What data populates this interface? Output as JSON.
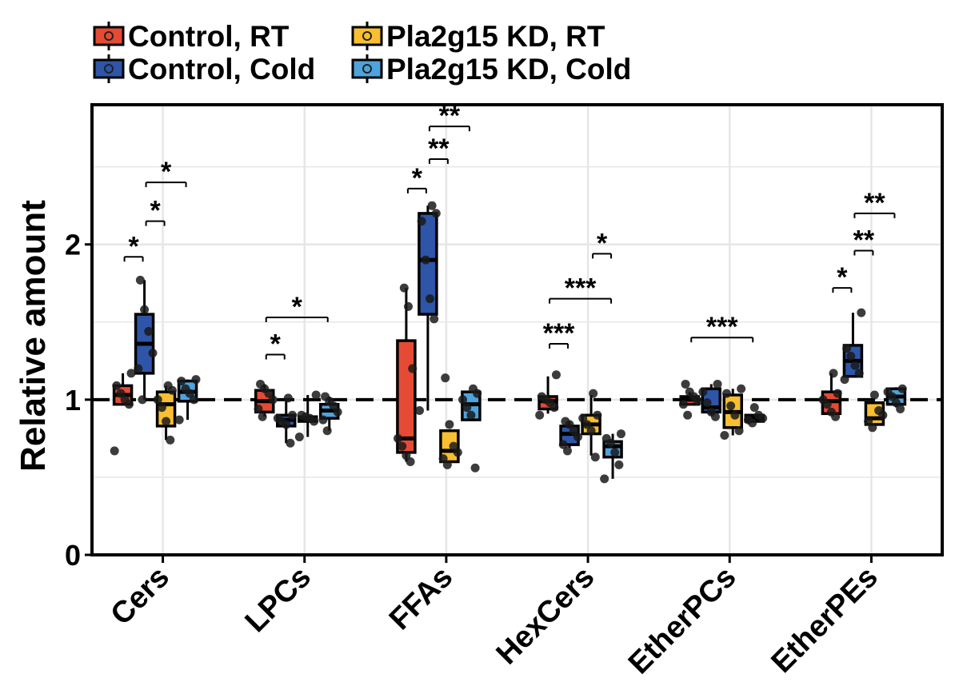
{
  "chart_data": {
    "type": "box",
    "ylabel": "Relative amount",
    "xlabel": "",
    "ylim": [
      0,
      2.9
    ],
    "yticks": [
      0,
      1,
      2
    ],
    "reference_line": 1,
    "categories": [
      "Cers",
      "LPCs",
      "FFAs",
      "HexCers",
      "EtherPCs",
      "EtherPEs"
    ],
    "series": [
      {
        "name": "Control, RT",
        "color": "#e64a35"
      },
      {
        "name": "Control, Cold",
        "color": "#2e55a8"
      },
      {
        "name": "Pla2g15 KD, RT",
        "color": "#f7bf31"
      },
      {
        "name": "Pla2g15 KD, Cold",
        "color": "#4fa3dc"
      }
    ],
    "legend": {
      "position": "top-left",
      "columns": 2
    },
    "boxes": [
      {
        "category": "Cers",
        "series": "Control, RT",
        "whisker_low": 0.97,
        "q1": 0.97,
        "median": 1.03,
        "q3": 1.09,
        "whisker_high": 1.17,
        "points": [
          0.67,
          0.97,
          1.0,
          1.04,
          1.09,
          1.17
        ]
      },
      {
        "category": "Cers",
        "series": "Control, Cold",
        "whisker_low": 1.0,
        "q1": 1.17,
        "median": 1.36,
        "q3": 1.55,
        "whisker_high": 1.77,
        "points": [
          1.0,
          1.2,
          1.3,
          1.44,
          1.58,
          1.77
        ]
      },
      {
        "category": "Cers",
        "series": "Pla2g15 KD, RT",
        "whisker_low": 0.74,
        "q1": 0.83,
        "median": 0.97,
        "q3": 1.05,
        "whisker_high": 1.09,
        "points": [
          0.74,
          0.86,
          0.95,
          1.0,
          1.06,
          1.09
        ]
      },
      {
        "category": "Cers",
        "series": "Pla2g15 KD, Cold",
        "whisker_low": 0.87,
        "q1": 0.99,
        "median": 1.05,
        "q3": 1.12,
        "whisker_high": 1.13,
        "points": [
          0.87,
          1.0,
          1.04,
          1.07,
          1.12,
          1.13
        ]
      },
      {
        "category": "LPCs",
        "series": "Control, RT",
        "whisker_low": 0.89,
        "q1": 0.92,
        "median": 0.99,
        "q3": 1.06,
        "whisker_high": 1.1,
        "points": [
          0.89,
          0.94,
          1.0,
          1.04,
          1.07,
          1.1
        ]
      },
      {
        "category": "LPCs",
        "series": "Control, Cold",
        "whisker_low": 0.72,
        "q1": 0.83,
        "median": 0.87,
        "q3": 0.9,
        "whisker_high": 1.01,
        "points": [
          0.72,
          0.84,
          0.86,
          0.88,
          0.9,
          1.01
        ]
      },
      {
        "category": "LPCs",
        "series": "Pla2g15 KD, RT",
        "whisker_low": 0.76,
        "q1": 0.86,
        "median": 0.88,
        "q3": 0.89,
        "whisker_high": 1.03,
        "points": [
          0.76,
          0.86,
          0.88,
          0.89,
          0.9,
          1.03
        ]
      },
      {
        "category": "LPCs",
        "series": "Pla2g15 KD, Cold",
        "whisker_low": 0.8,
        "q1": 0.88,
        "median": 0.93,
        "q3": 0.97,
        "whisker_high": 1.02,
        "points": [
          0.8,
          0.87,
          0.92,
          0.96,
          0.99,
          1.02
        ]
      },
      {
        "category": "FFAs",
        "series": "Control, RT",
        "whisker_low": 0.6,
        "q1": 0.66,
        "median": 0.75,
        "q3": 1.38,
        "whisker_high": 1.72,
        "points": [
          0.6,
          0.64,
          0.7,
          0.75,
          1.2,
          1.6,
          1.72
        ]
      },
      {
        "category": "FFAs",
        "series": "Control, Cold",
        "whisker_low": 0.93,
        "q1": 1.55,
        "median": 1.9,
        "q3": 2.2,
        "whisker_high": 2.25,
        "points": [
          0.93,
          1.52,
          1.65,
          1.9,
          2.15,
          2.2,
          2.25
        ]
      },
      {
        "category": "FFAs",
        "series": "Pla2g15 KD, RT",
        "whisker_low": 0.6,
        "q1": 0.6,
        "median": 0.67,
        "q3": 0.8,
        "whisker_high": 0.8,
        "points": [
          0.58,
          0.62,
          0.66,
          0.7,
          0.84,
          1.14
        ]
      },
      {
        "category": "FFAs",
        "series": "Pla2g15 KD, Cold",
        "whisker_low": 0.87,
        "q1": 0.87,
        "median": 0.97,
        "q3": 1.05,
        "whisker_high": 1.05,
        "points": [
          0.56,
          0.9,
          0.95,
          1.0,
          1.04,
          1.07
        ]
      },
      {
        "category": "HexCers",
        "series": "Control, RT",
        "whisker_low": 0.91,
        "q1": 0.94,
        "median": 0.99,
        "q3": 1.02,
        "whisker_high": 1.15,
        "points": [
          0.9,
          0.95,
          0.98,
          1.0,
          1.02,
          1.16
        ]
      },
      {
        "category": "HexCers",
        "series": "Control, Cold",
        "whisker_low": 0.69,
        "q1": 0.71,
        "median": 0.78,
        "q3": 0.83,
        "whisker_high": 0.86,
        "points": [
          0.67,
          0.71,
          0.76,
          0.8,
          0.84,
          0.86
        ]
      },
      {
        "category": "HexCers",
        "series": "Pla2g15 KD, RT",
        "whisker_low": 0.64,
        "q1": 0.78,
        "median": 0.84,
        "q3": 0.9,
        "whisker_high": 1.03,
        "points": [
          0.63,
          0.8,
          0.84,
          0.88,
          0.9,
          1.04
        ]
      },
      {
        "category": "HexCers",
        "series": "Pla2g15 KD, Cold",
        "whisker_low": 0.49,
        "q1": 0.63,
        "median": 0.7,
        "q3": 0.73,
        "whisker_high": 0.78,
        "points": [
          0.49,
          0.58,
          0.66,
          0.72,
          0.75,
          0.78
        ]
      },
      {
        "category": "EtherPCs",
        "series": "Control, RT",
        "whisker_low": 0.97,
        "q1": 0.97,
        "median": 1.0,
        "q3": 1.02,
        "whisker_high": 1.05,
        "points": [
          0.9,
          0.97,
          0.99,
          1.02,
          1.05,
          1.1
        ]
      },
      {
        "category": "EtherPCs",
        "series": "Control, Cold",
        "whisker_low": 0.9,
        "q1": 0.92,
        "median": 0.95,
        "q3": 1.07,
        "whisker_high": 1.1,
        "points": [
          0.89,
          0.92,
          0.98,
          1.05,
          1.1
        ]
      },
      {
        "category": "EtherPCs",
        "series": "Pla2g15 KD, RT",
        "whisker_low": 0.77,
        "q1": 0.82,
        "median": 0.92,
        "q3": 1.03,
        "whisker_high": 1.07,
        "points": [
          0.77,
          0.8,
          0.9,
          0.96,
          1.04,
          1.07
        ]
      },
      {
        "category": "EtherPCs",
        "series": "Pla2g15 KD, Cold",
        "whisker_low": 0.86,
        "q1": 0.86,
        "median": 0.88,
        "q3": 0.9,
        "whisker_high": 0.9,
        "points": [
          0.85,
          0.87,
          0.88,
          0.9,
          0.95
        ]
      },
      {
        "category": "EtherPEs",
        "series": "Control, RT",
        "whisker_low": 0.91,
        "q1": 0.91,
        "median": 0.99,
        "q3": 1.05,
        "whisker_high": 1.17,
        "points": [
          0.89,
          0.92,
          0.97,
          1.0,
          1.04,
          1.17
        ]
      },
      {
        "category": "EtherPEs",
        "series": "Control, Cold",
        "whisker_low": 1.15,
        "q1": 1.15,
        "median": 1.25,
        "q3": 1.35,
        "whisker_high": 1.56,
        "points": [
          1.13,
          1.17,
          1.22,
          1.28,
          1.33,
          1.56
        ]
      },
      {
        "category": "EtherPEs",
        "series": "Pla2g15 KD, RT",
        "whisker_low": 0.84,
        "q1": 0.84,
        "median": 0.88,
        "q3": 0.98,
        "whisker_high": 0.98,
        "points": [
          0.82,
          0.86,
          0.9,
          0.93,
          1.03
        ]
      },
      {
        "category": "EtherPEs",
        "series": "Pla2g15 KD, Cold",
        "whisker_low": 0.95,
        "q1": 0.97,
        "median": 1.02,
        "q3": 1.07,
        "whisker_high": 1.08,
        "points": [
          0.94,
          0.98,
          1.02,
          1.05,
          1.07
        ]
      }
    ],
    "significance": [
      {
        "category": "Cers",
        "from": "Control, RT",
        "to": "Control, Cold",
        "y": 1.92,
        "label": "*"
      },
      {
        "category": "Cers",
        "from": "Control, Cold",
        "to": "Pla2g15 KD, RT",
        "y": 2.15,
        "label": "*"
      },
      {
        "category": "Cers",
        "from": "Control, Cold",
        "to": "Pla2g15 KD, Cold",
        "y": 2.4,
        "label": "*"
      },
      {
        "category": "LPCs",
        "from": "Control, RT",
        "to": "Control, Cold",
        "y": 1.29,
        "label": "*"
      },
      {
        "category": "LPCs",
        "from": "Control, RT",
        "to": "Pla2g15 KD, Cold",
        "y": 1.53,
        "label": "*"
      },
      {
        "category": "FFAs",
        "from": "Control, RT",
        "to": "Control, Cold",
        "y": 2.36,
        "label": "*"
      },
      {
        "category": "FFAs",
        "from": "Control, Cold",
        "to": "Pla2g15 KD, RT",
        "y": 2.55,
        "label": "**"
      },
      {
        "category": "FFAs",
        "from": "Control, Cold",
        "to": "Pla2g15 KD, Cold",
        "y": 2.76,
        "label": "**"
      },
      {
        "category": "HexCers",
        "from": "Control, RT",
        "to": "Control, Cold",
        "y": 1.36,
        "label": "***"
      },
      {
        "category": "HexCers",
        "from": "Control, RT",
        "to": "Pla2g15 KD, Cold",
        "y": 1.65,
        "label": "***"
      },
      {
        "category": "HexCers",
        "from": "Pla2g15 KD, RT",
        "to": "Pla2g15 KD, Cold",
        "y": 1.94,
        "label": "*"
      },
      {
        "category": "EtherPCs",
        "from": "Control, RT",
        "to": "Pla2g15 KD, Cold",
        "y": 1.4,
        "label": "***"
      },
      {
        "category": "EtherPEs",
        "from": "Control, RT",
        "to": "Control, Cold",
        "y": 1.72,
        "label": "*"
      },
      {
        "category": "EtherPEs",
        "from": "Control, Cold",
        "to": "Pla2g15 KD, RT",
        "y": 1.96,
        "label": "**"
      },
      {
        "category": "EtherPEs",
        "from": "Control, Cold",
        "to": "Pla2g15 KD, Cold",
        "y": 2.2,
        "label": "**"
      }
    ]
  }
}
